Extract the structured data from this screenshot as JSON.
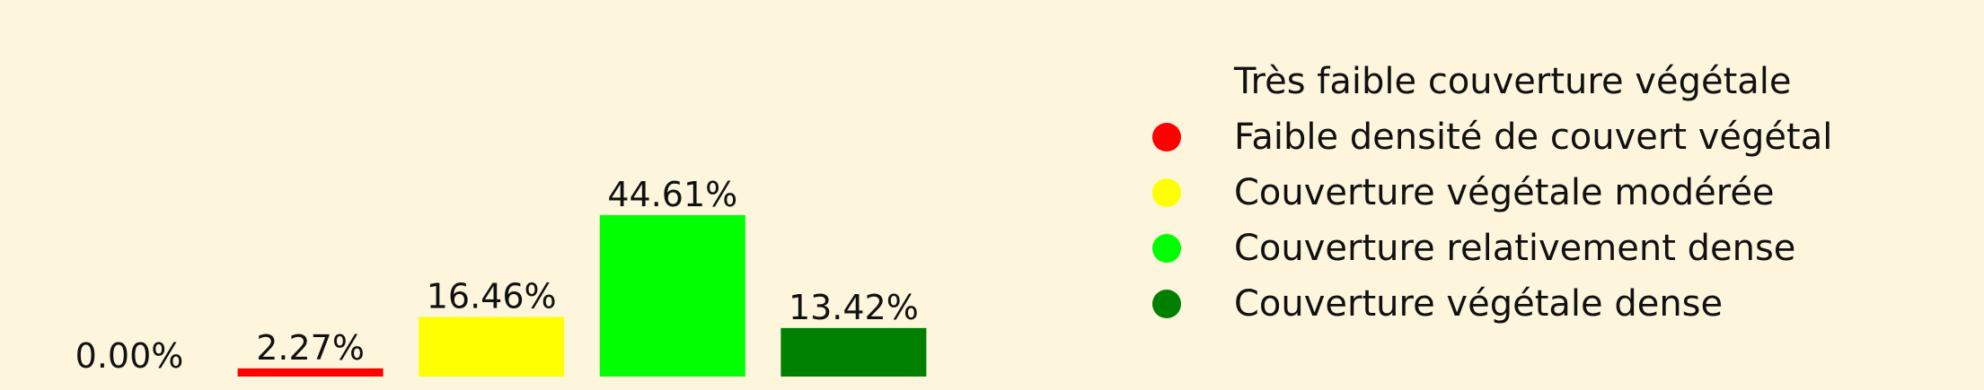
{
  "chart_data": {
    "type": "bar",
    "categories": [
      "Très faible couverture végétale",
      "Faible densité de couvert végétal",
      "Couverture végétale modérée",
      "Couverture relativement dense",
      "Couverture végétale dense"
    ],
    "values": [
      0.0,
      2.27,
      16.46,
      44.61,
      13.42
    ],
    "value_labels": [
      "0.00%",
      "2.27%",
      "16.46%",
      "44.61%",
      "13.42%"
    ],
    "colors": [
      "#fdf5dc",
      "#ff0000",
      "#ffff00",
      "#00ff00",
      "#008000"
    ],
    "title": "",
    "xlabel": "",
    "ylabel": "",
    "ylim": [
      0,
      50
    ],
    "grid": false,
    "legend_position": "right"
  },
  "legend": {
    "items": [
      {
        "label": "Très faible couverture végétale",
        "color": "#fdf5dc"
      },
      {
        "label": "Faible densité de couvert végétal",
        "color": "#ff0000"
      },
      {
        "label": "Couverture végétale modérée",
        "color": "#ffff00"
      },
      {
        "label": "Couverture relativement dense",
        "color": "#00ff00"
      },
      {
        "label": "Couverture végétale dense",
        "color": "#008000"
      }
    ]
  }
}
